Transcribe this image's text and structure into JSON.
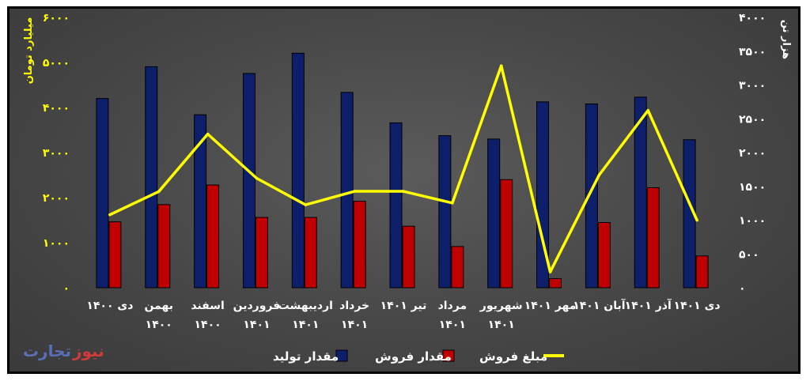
{
  "brand": {
    "logo_part1": "نیوز",
    "logo_part2": "تجارت",
    "accent": "#d13a3a",
    "secondary": "#5a6fb8"
  },
  "chart_data": {
    "type": "bar",
    "categories": [
      [
        "دی ۱۴۰۰"
      ],
      [
        "بهمن",
        "۱۴۰۰"
      ],
      [
        "اسفند",
        "۱۴۰۰"
      ],
      [
        "فروردین",
        "۱۴۰۱"
      ],
      [
        "اردیبهشت",
        "۱۴۰۱"
      ],
      [
        "خرداد",
        "۱۴۰۱"
      ],
      [
        "تیر ۱۴۰۱"
      ],
      [
        "مرداد",
        "۱۴۰۱"
      ],
      [
        "شهریور",
        "۱۴۰۱"
      ],
      [
        "مهر ۱۴۰۱"
      ],
      [
        "آبان ۱۴۰۱"
      ],
      [
        "آذر ۱۴۰۱"
      ],
      [
        "دی ۱۴۰۱"
      ]
    ],
    "y_left": {
      "label": "میلیارد تومان",
      "range": [
        0,
        6000
      ],
      "ticks": [
        0,
        1000,
        2000,
        3000,
        4000,
        5000,
        6000
      ],
      "tick_labels": [
        "۰",
        "۱۰۰۰",
        "۲۰۰۰",
        "۳۰۰۰",
        "۴۰۰۰",
        "۵۰۰۰",
        "۶۰۰۰"
      ]
    },
    "y_right": {
      "label": "هزار تن",
      "range": [
        0,
        4000
      ],
      "ticks": [
        0,
        500,
        1000,
        1500,
        2000,
        2500,
        3000,
        3500,
        4000
      ],
      "tick_labels": [
        "۰",
        "۵۰۰",
        "۱۰۰۰",
        "۱۵۰۰",
        "۲۰۰۰",
        "۲۵۰۰",
        "۳۰۰۰",
        "۳۵۰۰",
        "۴۰۰۰"
      ]
    },
    "series": [
      {
        "name": "مقدار تولید",
        "type": "bar",
        "axis": "right",
        "color": "#0d1f6b",
        "values": [
          2800,
          3270,
          2560,
          3170,
          3470,
          2890,
          2440,
          2250,
          2200,
          2750,
          2720,
          2820,
          2190
        ]
      },
      {
        "name": "مقدار فروش",
        "type": "bar",
        "axis": "right",
        "color": "#c00000",
        "values": [
          975,
          1230,
          1520,
          1040,
          1040,
          1280,
          910,
          610,
          1600,
          135,
          965,
          1480,
          470
        ]
      },
      {
        "name": "مبلغ فروش",
        "type": "line",
        "axis": "left",
        "color": "#ffff00",
        "values": [
          1620,
          2135,
          3410,
          2430,
          1840,
          2140,
          2140,
          1880,
          4925,
          350,
          2500,
          3935,
          1500
        ]
      }
    ],
    "legend_position": "bottom",
    "grid": false
  }
}
